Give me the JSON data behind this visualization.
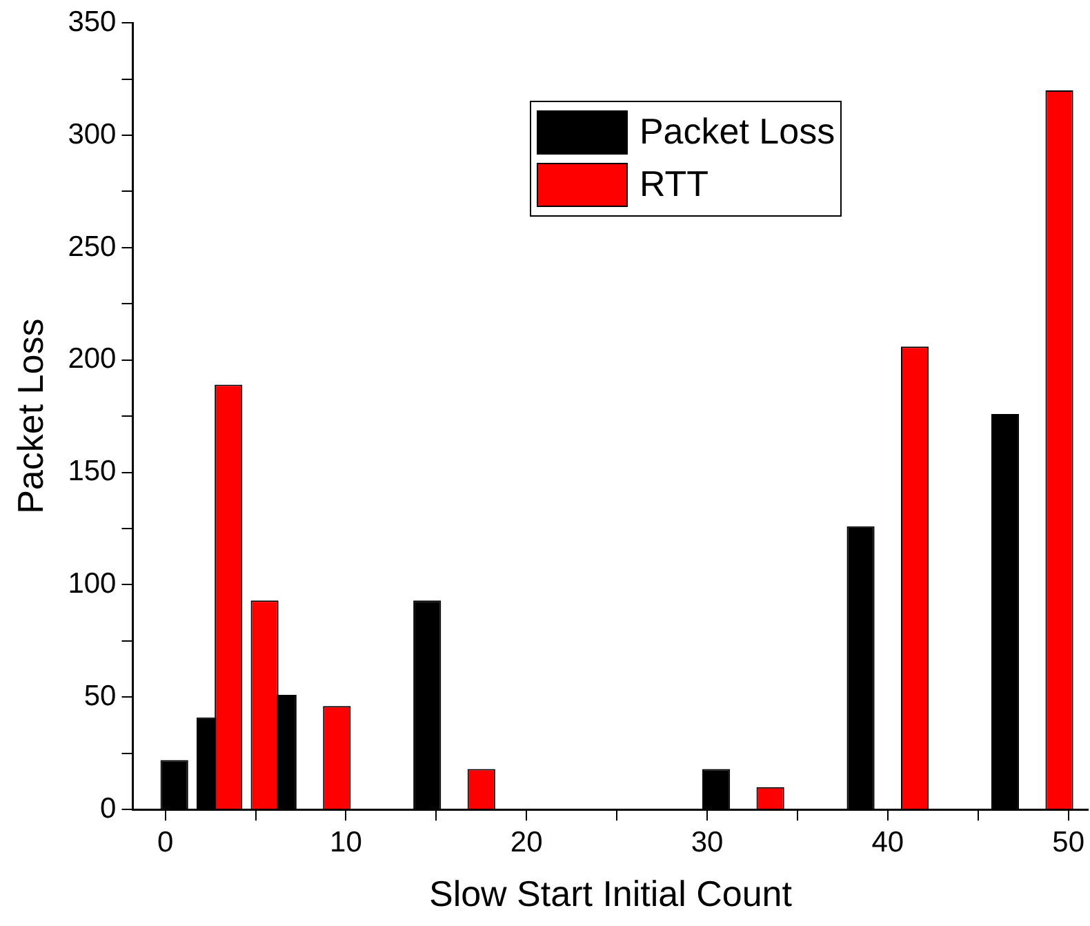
{
  "chart_data": {
    "type": "bar",
    "xlabel": "Slow Start Initial Count",
    "ylabel": "Packet Loss",
    "series": [
      {
        "name": "Packet Loss",
        "color": "#000000",
        "x": [
          0.5,
          2.5,
          6.5,
          14.5,
          30.5,
          38.5,
          46.5
        ],
        "values": [
          22,
          41,
          51,
          93,
          18,
          126,
          176
        ]
      },
      {
        "name": "RTT",
        "color": "#ff0000",
        "x": [
          3.5,
          5.5,
          9.5,
          17.5,
          33.5,
          41.5,
          49.5
        ],
        "values": [
          189,
          93,
          46,
          18,
          10,
          206,
          320
        ]
      }
    ],
    "xlim": [
      -1.8,
      51.1
    ],
    "xticks": [
      0,
      {
        "value": 5,
        "label": null
      },
      10,
      {
        "value": 15,
        "label": null
      },
      20,
      {
        "value": 25,
        "label": null
      },
      30,
      {
        "value": 35,
        "label": null
      },
      40,
      {
        "value": 45,
        "label": null
      },
      50
    ],
    "ylim": [
      0,
      350
    ],
    "yticks": [
      0,
      {
        "value": 25,
        "label": null
      },
      50,
      {
        "value": 75,
        "label": null
      },
      100,
      {
        "value": 125,
        "label": null
      },
      150,
      {
        "value": 175,
        "label": null
      },
      200,
      {
        "value": 225,
        "label": null
      },
      250,
      {
        "value": 275,
        "label": null
      },
      300,
      {
        "value": 325,
        "label": null
      },
      350
    ],
    "grid": false,
    "legend": "top"
  }
}
